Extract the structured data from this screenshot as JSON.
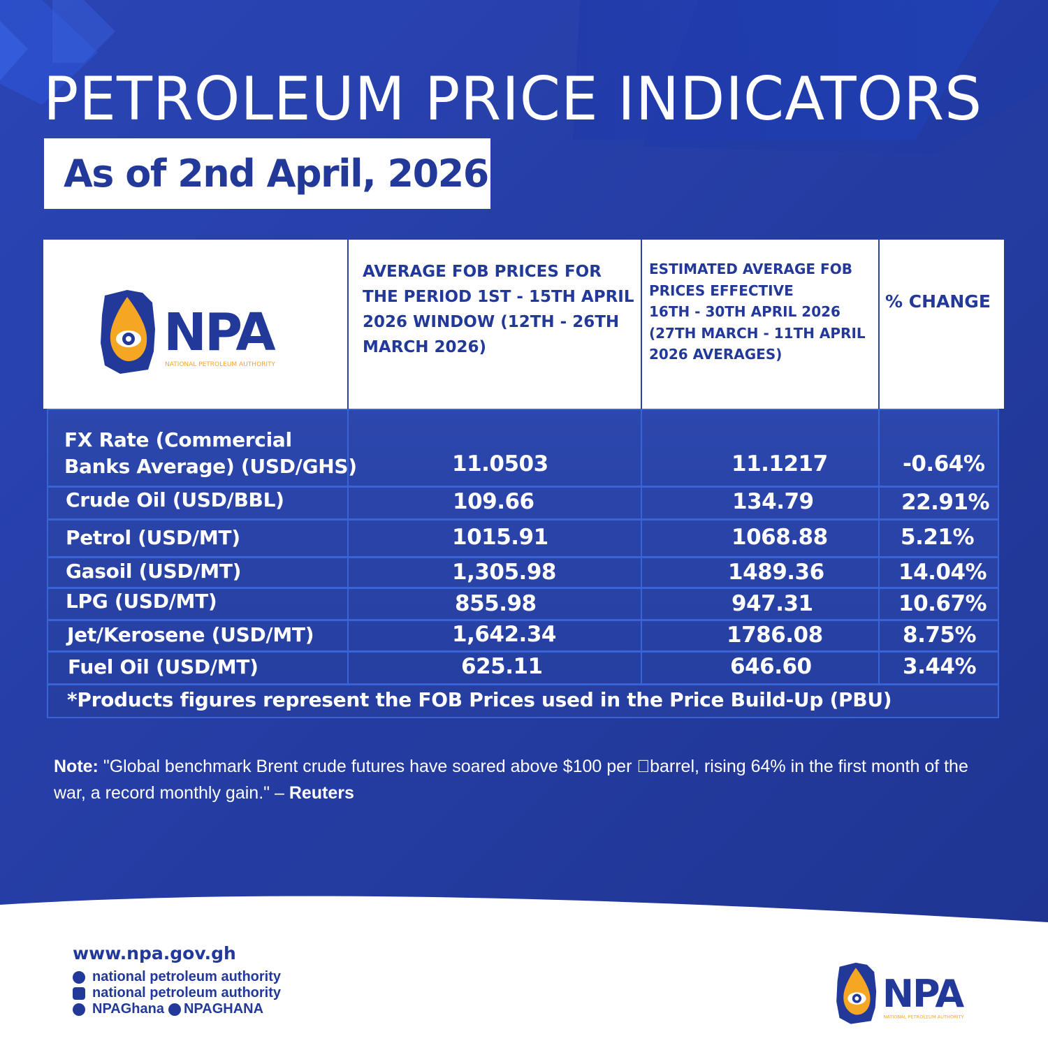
{
  "title": "PETROLEUM PRICE INDICATORS",
  "date": "As of 2nd April, 2026",
  "logo": {
    "text": "NPA",
    "subtitle": "NATIONAL PETROLEUM AUTHORITY"
  },
  "table": {
    "headers": [
      "AVERAGE FOB PRICES FOR\nTHE PERIOD 1ST - 15TH APRIL\n2026 WINDOW (12TH - 26TH\nMARCH 2026)",
      "ESTIMATED AVERAGE FOB\nPRICES EFFECTIVE\n16TH - 30TH APRIL 2026\n(27TH MARCH - 11TH APRIL\n2026 AVERAGES)",
      "% CHANGE"
    ],
    "rows": [
      {
        "label": "FX Rate (Commercial\nBanks Average) (USD/GHS)",
        "avg": "11.0503",
        "est": "11.1217",
        "change": "-0.64%"
      },
      {
        "label": "Crude Oil (USD/BBL)",
        "avg": "109.66",
        "est": "134.79",
        "change": "22.91%"
      },
      {
        "label": "Petrol (USD/MT)",
        "avg": "1015.91",
        "est": "1068.88",
        "change": "5.21%"
      },
      {
        "label": "Gasoil (USD/MT)",
        "avg": "1,305.98",
        "est": "1489.36",
        "change": "14.04%"
      },
      {
        "label": "LPG (USD/MT)",
        "avg": "855.98",
        "est": "947.31",
        "change": "10.67%"
      },
      {
        "label": "Jet/Kerosene (USD/MT)",
        "avg": "1,642.34",
        "est": "1786.08",
        "change": "8.75%"
      },
      {
        "label": "Fuel Oil (USD/MT)",
        "avg": "625.11",
        "est": "646.60",
        "change": "3.44%"
      }
    ],
    "footnote": "*Products figures represent the FOB Prices used in the Price Build-Up (PBU)"
  },
  "note": {
    "label": "Note:",
    "text": " \"Global benchmark Brent crude futures have soared above $100 per \u0000barrel, rising 64% in the first month of the war, a record monthly gain.\" – ",
    "source": "Reuters"
  },
  "footer": {
    "website": "www.npa.gov.gh",
    "facebook": "national petroleum authority",
    "instagram": "national petroleum authority",
    "twitter": "NPAGhana",
    "tiktok": "NPAGHANA"
  },
  "colors": {
    "navy": "#20358f",
    "accent": "#f5a623",
    "white": "#ffffff"
  }
}
